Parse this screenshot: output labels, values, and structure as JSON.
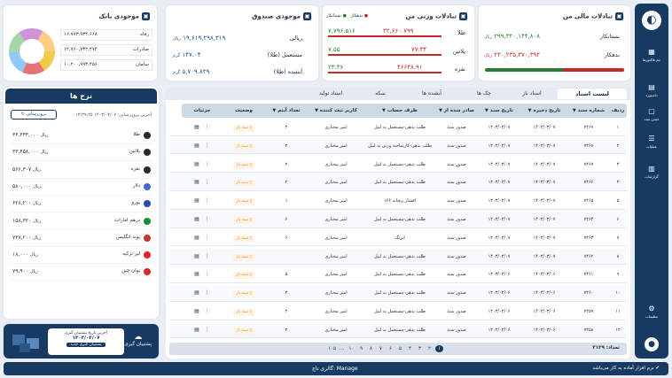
{
  "sidebar": {
    "items": [
      {
        "label": "نیم فاکتورها",
        "icon": "grid-icon"
      },
      {
        "label": "داشبورد",
        "icon": "clipboard-icon"
      },
      {
        "label": "حسن سند",
        "icon": "document-icon"
      },
      {
        "label": "عملیات",
        "icon": "list-icon"
      },
      {
        "label": "گزارشات",
        "icon": "report-icon"
      }
    ],
    "settings_label": "تنظیمات"
  },
  "mali": {
    "title": "تبادلات مالی من",
    "bestankar_label": "بستانکار",
    "bestankar_value": "۲۹۹,۳۲۰,۱۴۴,۸۰۸",
    "bestankar_unit": "ریال",
    "bedehkar_label": "بدهکار",
    "bedehkar_value": "۲۳۰,۲۳۵,۳۷۰,۳۹۲",
    "bedehkar_unit": "ریال",
    "bar_green_fraction": 0.56
  },
  "vazni": {
    "title": "تبادلات وزنی من",
    "legend_bestankar": "بستانکار",
    "legend_bedehkar": "بدهکار",
    "rows": [
      {
        "label": "طلا",
        "bed": "۳۲,۶۶۰.۷۹۹",
        "best": "۷,۷۹۶.۵۱۶"
      },
      {
        "label": "پلاتین",
        "bed": "۷۷.۳۴",
        "best": "۷.۵۵"
      },
      {
        "label": "نقره",
        "bed": "۴۶۶۴۸.۹۱",
        "best": "۲۳.۳۶"
      }
    ]
  },
  "sandogh": {
    "title": "موجودی صندوق",
    "rows": [
      {
        "label": "ریالی",
        "value": "۱۹,۶۱۹,۲۹۸,۳۱۹",
        "unit": "ریال"
      },
      {
        "label": "مستعمل (طلا)",
        "value": "۱۴۷.۰۴",
        "unit": "گرم"
      },
      {
        "label": "آبشده (طلا)",
        "value": "۵,۷۰۹.۸۲۹",
        "unit": "گرم"
      }
    ]
  },
  "bank": {
    "title": "موجودی بانک",
    "rows": [
      {
        "name": "رفاه",
        "value": "۱۶,۷۷۳,۹۳۴,۶۶۸"
      },
      {
        "name": "صادرات",
        "value": "۱۲,۷۶۰,۷۳۲,۴۷۲"
      },
      {
        "name": "سامان",
        "value": "۱۰,۲۰۰,۹۹۳,۴۵۶"
      }
    ]
  },
  "rates": {
    "title": "نرخ ها",
    "refresh_label": "بروزرسانی",
    "last_update": "آخرین بروزرسانی: ۱۴۰۳/۰۳/۰۷ ۱۳:۳۹:۲۵",
    "rows": [
      {
        "name": "طلا",
        "value": "۳۳,۳۳۳,۰۰۰",
        "unit": "ریال",
        "color": "#2b2b2b"
      },
      {
        "name": "پلاتین",
        "value": "۳۳,۴۵۸,۰۰۰",
        "unit": "ریال",
        "color": "#2b2b2b"
      },
      {
        "name": "نقره",
        "value": "۵۶۶,۳۰۷",
        "unit": "ریال",
        "color": "#2b2b2b"
      },
      {
        "name": "دلار",
        "value": "۵۸۰,۰۰۰",
        "unit": "ریال",
        "color": "#3c6fd1"
      },
      {
        "name": "یورو",
        "value": "۶۲۸,۲۰۰",
        "unit": "ریال",
        "color": "#1e4bb3"
      },
      {
        "name": "درهم امارات",
        "value": "۱۵۸,۳۲۰",
        "unit": "ریال",
        "color": "#1f8a3a"
      },
      {
        "name": "پوند انگلیس",
        "value": "۷۳۷,۲۰۰",
        "unit": "ریال",
        "color": "#c2372e"
      },
      {
        "name": "لیر ترکیه",
        "value": "۱۸,۰۰۰",
        "unit": "ریال",
        "color": "#d8262b"
      },
      {
        "name": "یوان چین",
        "value": "۷۹,۹۰۰",
        "unit": "ریال",
        "color": "#d8262b"
      }
    ]
  },
  "backup": {
    "title": "پشتیبان گیری",
    "line1": "آخرین تاریخ پشتیبان گیری",
    "line2": "۱۴۰۳/۰۳/۰۷",
    "button": "پشتیبان گیری جدید"
  },
  "tabs": [
    "لیست اسناد",
    "اسناد باز",
    "چک ها",
    "آبشده ها",
    "سکه",
    "اسناد تولید"
  ],
  "columns": [
    "ردیف",
    "شماره سند",
    "تاریخ ذخیره",
    "تاریخ سند",
    "صادر شده از",
    "طرف حساب",
    "کاربر ثبت کننده",
    "تعداد آیتم",
    "وضعیت",
    "جزئیات"
  ],
  "rows": [
    {
      "n": "۱",
      "doc": "۷۴۶۹",
      "save": "۱۴۰۳/۰۳/۰۷",
      "date": "۱۴۰۳/۰۳/۰۷",
      "from": "صدور سند",
      "party": "طلب بدهی-مستعمل به لنیل",
      "user": "امیر مختاری",
      "items": "۲",
      "status": "سند باز"
    },
    {
      "n": "۲",
      "doc": "۷۴۶۸",
      "save": "۱۴۰۳/۰۳/۰۷",
      "date": "۱۴۰۳/۰۳/۰۷",
      "from": "صدور سند",
      "party": "طلب بدهی-کارساخته وزنی به لنیل",
      "user": "امیر مختاری",
      "items": "۲",
      "status": "سند باز"
    },
    {
      "n": "۳",
      "doc": "۷۴۶۷",
      "save": "۱۴۰۳/۰۳/۰۷",
      "date": "۱۴۰۳/۰۳/۰۷",
      "from": "صدور سند",
      "party": "طلب بدهی-مستعمل به لنیل",
      "user": "امیر مختاری",
      "items": "۲",
      "status": "سند باز"
    },
    {
      "n": "۴",
      "doc": "۷۴۶۶",
      "save": "۱۴۰۳/۰۳/۰۷",
      "date": "۱۴۰۳/۰۳/۰۷",
      "from": "صدور سند",
      "party": "طلب بدهی-مستعمل به لنیل",
      "user": "امیر مختاری",
      "items": "۲",
      "status": "سند باز"
    },
    {
      "n": "۵",
      "doc": "۷۴۶۵",
      "save": "۱۴۰۳/۰۳/۰۷",
      "date": "۱۴۰۳/۰۳/۰۷",
      "from": "صدور سند",
      "party": "افشار ریحانه ۱۶۶",
      "user": "امیر مختاری",
      "items": "۱",
      "status": "سند باز"
    },
    {
      "n": "۶",
      "doc": "۷۴۶۴",
      "save": "۱۴۰۳/۰۳/۰۷",
      "date": "۱۴۰۳/۰۳/۰۷",
      "from": "صدور سند",
      "party": "طلب بدهی-مستعمل به لنیل",
      "user": "امیر مختاری",
      "items": "۶",
      "status": "سند باز"
    },
    {
      "n": "۷",
      "doc": "۷۴۶۳",
      "save": "۱۴۰۳/۰۳/۰۷",
      "date": "۱۴۰۳/۰۳/۰۷",
      "from": "صدور سند",
      "party": "ایرنگ",
      "user": "امیر مختاری",
      "items": "۶",
      "status": "سند باز"
    },
    {
      "n": "۸",
      "doc": "۷۴۶۲",
      "save": "۱۴۰۳/۰۳/۰۷",
      "date": "۱۴۰۳/۰۳/۰۷",
      "from": "صدور سند",
      "party": "طلب بدهی-مستعمل به لنیل",
      "user": "امیر مختاری",
      "items": "",
      "status": "سند باز"
    },
    {
      "n": "۹",
      "doc": "۷۴۶۱",
      "save": "۱۴۰۳/۰۳/۰۶",
      "date": "۱۴۰۳/۰۳/۰۶",
      "from": "صدور سند",
      "party": "طلب بدهی-مستعمل به لنیل",
      "user": "امیر مختاری",
      "items": "۵",
      "status": "سند باز"
    },
    {
      "n": "۱۰",
      "doc": "۷۴۶۰",
      "save": "۱۴۰۳/۰۳/۰۶",
      "date": "۱۴۰۳/۰۳/۰۶",
      "from": "صدور سند",
      "party": "طلب بدهی-مستعمل به لنیل",
      "user": "امیر مختاری",
      "items": "۲",
      "status": "سند باز"
    },
    {
      "n": "۱۱",
      "doc": "۷۴۵۹",
      "save": "۱۴۰۳/۰۳/۰۶",
      "date": "۱۴۰۳/۰۳/۰۶",
      "from": "صدور سند",
      "party": "طلب بدهی-مستعمل به لنیل",
      "user": "امیر مختاری",
      "items": "۲",
      "status": "سند باز"
    },
    {
      "n": "۱۲",
      "doc": "۷۴۵۸",
      "save": "۱۴۰۳/۰۳/۰۶",
      "date": "۱۴۰۳/۰۳/۰۶",
      "from": "صدور سند",
      "party": "طلب بدهی-مستعمل به لنیل",
      "user": "امیر مختاری",
      "items": "۲",
      "status": "سند باز"
    }
  ],
  "pager": {
    "total": "تعداد: ۳۱۲۹",
    "pages": [
      "۱",
      "۲",
      "۳",
      "۴",
      "۵",
      "۶",
      "۷",
      "۸",
      "۹",
      "۱۰",
      "...",
      "۱۰۵"
    ]
  },
  "footer": {
    "left": "گالری تاج: Manage",
    "right": "نرم افزار آماده به کار می‌باشد"
  }
}
